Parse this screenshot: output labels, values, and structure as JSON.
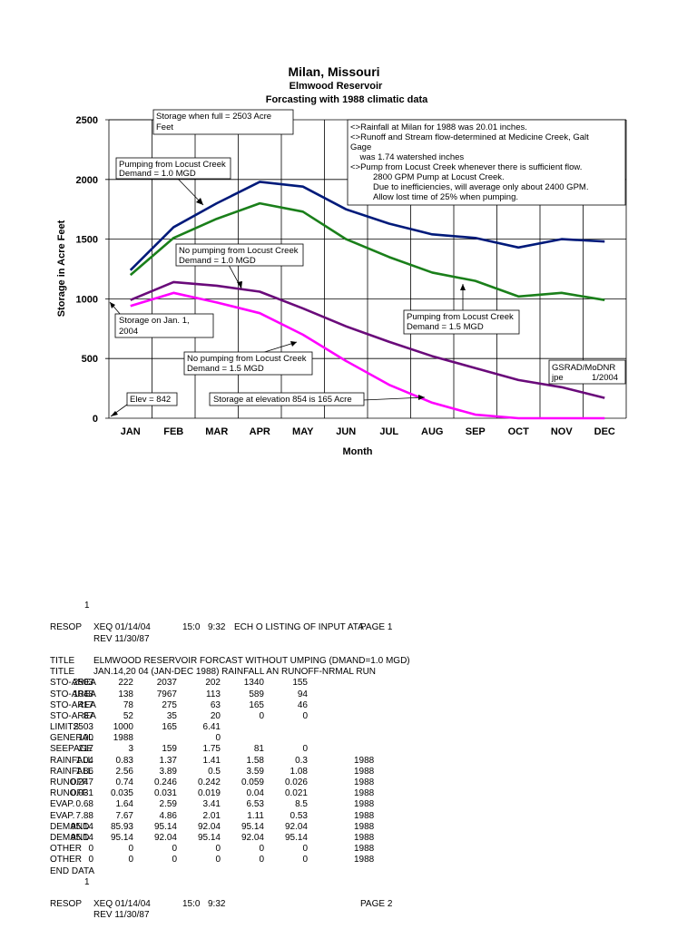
{
  "chart_data": {
    "type": "line",
    "title": "Milan, Missouri",
    "subtitle_1": "Elmwood Reservoir",
    "subtitle_2": "Forcasting with 1988 climatic data",
    "ylabel": "Storage in Acre Feet",
    "xlabel": "Month",
    "categories": [
      "JAN",
      "FEB",
      "MAR",
      "APR",
      "MAY",
      "JUN",
      "JUL",
      "AUG",
      "SEP",
      "OCT",
      "NOV",
      "DEC"
    ],
    "yticks": [
      "0",
      "500",
      "1000",
      "1500",
      "2000",
      "2500"
    ],
    "ylim": [
      0,
      2500
    ],
    "grid": "vertical",
    "series": [
      {
        "color": "#001a7a",
        "values": [
          1240,
          1600,
          1800,
          1980,
          1940,
          1750,
          1630,
          1540,
          1510,
          1430,
          1500,
          1480
        ]
      },
      {
        "color": "#1a7f1a",
        "values": [
          1200,
          1510,
          1670,
          1800,
          1730,
          1500,
          1350,
          1220,
          1150,
          1020,
          1050,
          990
        ]
      },
      {
        "color": "#6a0a7a",
        "values": [
          990,
          1140,
          1110,
          1060,
          920,
          770,
          640,
          520,
          420,
          320,
          260,
          170
        ]
      },
      {
        "color": "#ff00ff",
        "values": [
          940,
          1050,
          970,
          880,
          700,
          480,
          280,
          130,
          30,
          0,
          0,
          0
        ]
      }
    ],
    "annotations": {
      "storage_full": [
        "Storage when full = 2503 Acre",
        "Feet"
      ],
      "notes": [
        "<>Rainfall at Milan for 1988 was 20.01 inches.",
        "<>Runoff and Stream flow-determined at Medicine Creek, Galt",
        "Gage",
        "    was 1.74 watershed inches",
        "<>Pump from Locust Creek whenever there is sufficient flow.",
        "        2800 GPM Pump at Locust Creek.",
        "        Due to inefficiencies, will average only about 2400 GPM.",
        "        Allow lost time of 25% when pumping."
      ],
      "pump_1mgd": [
        "Pumping from Locust Creek",
        "Demand = 1.0 MGD"
      ],
      "nopump_1mgd": [
        "No pumping from Locust Creek",
        "Demand = 1.0 MGD"
      ],
      "jan1": [
        "Storage on Jan. 1,",
        "2004"
      ],
      "pump_15mgd": [
        "Pumping from Locust Creek",
        "Demand = 1.5 MGD"
      ],
      "nopump_15mgd": [
        "No pumping from Locust Creek",
        "Demand = 1.5 MGD"
      ],
      "gsrad": [
        "GSRAD/MoDNR",
        "jpe",
        "1/2004"
      ],
      "elev": "Elev = 842",
      "elev854": "Storage at elevation 854 is 165 Acre"
    }
  },
  "listing": {
    "page_marker_1": "1",
    "header_1": [
      "RESOP",
      "XEQ  01/14/04",
      "15:0",
      "9:32",
      "ECH O LISTING OF INPUT ATA",
      "PAGE  1"
    ],
    "rev_1": "REV  11/30/87",
    "title_rows": [
      [
        "TITLE",
        "ELMWOOD RESERVOIR FORCAST WITHOUT UMPING (DMAND=1.0 MGD)"
      ],
      [
        "TITLE",
        "JAN.14,20 04 (JAN-DEC 1988) RAINFALL AN RUNOFF-NRMAL RUN"
      ]
    ],
    "rows": [
      {
        "label": "STO-AREA",
        "values": [
          "2503",
          "222",
          "2037",
          "202",
          "1340",
          "155",
          ""
        ]
      },
      {
        "label": "STO-AREA",
        "values": [
          "1048",
          "138",
          "7967",
          "113",
          "589",
          "94",
          ""
        ]
      },
      {
        "label": "STO-AREA",
        "values": [
          "417",
          "78",
          "275",
          "63",
          "165",
          "46",
          ""
        ]
      },
      {
        "label": "STO-AREA",
        "values": [
          "87",
          "52",
          "35",
          "20",
          "0",
          "0",
          ""
        ]
      },
      {
        "label": "LIMITS",
        "values": [
          "2503",
          "1000",
          "165",
          "6.41",
          "",
          "",
          ""
        ]
      },
      {
        "label": "GENERAL",
        "values": [
          "100",
          "1988",
          "",
          "0",
          "",
          "",
          ""
        ]
      },
      {
        "label": "SEEPAGE",
        "values": [
          "217",
          "3",
          "159",
          "1.75",
          "81",
          "0",
          ""
        ]
      },
      {
        "label": "RAINFALL",
        "values": [
          "1.04",
          "0.83",
          "1.37",
          "1.41",
          "1.58",
          "0.3",
          "1988"
        ]
      },
      {
        "label": "RAINFALL",
        "values": [
          "1.86",
          "2.56",
          "3.89",
          "0.5",
          "3.59",
          "1.08",
          "1988"
        ]
      },
      {
        "label": "RUNOFF",
        "values": [
          "0.247",
          "0.74",
          "0.246",
          "0.242",
          "0.059",
          "0.026",
          "1988"
        ]
      },
      {
        "label": "RUNOFF",
        "values": [
          "0.031",
          "0.035",
          "0.031",
          "0.019",
          "0.04",
          "0.021",
          "1988"
        ]
      },
      {
        "label": "EVAP.",
        "values": [
          "0.68",
          "1.64",
          "2.59",
          "3.41",
          "6.53",
          "8.5",
          "1988"
        ]
      },
      {
        "label": "EVAP.",
        "values": [
          "7.88",
          "7.67",
          "4.86",
          "2.01",
          "1.11",
          "0.53",
          "1988"
        ]
      },
      {
        "label": "DEMAND",
        "values": [
          "95.14",
          "85.93",
          "95.14",
          "92.04",
          "95.14",
          "92.04",
          "1988"
        ]
      },
      {
        "label": "DEMAND",
        "values": [
          "95.14",
          "95.14",
          "92.04",
          "95.14",
          "92.04",
          "95.14",
          "1988"
        ]
      },
      {
        "label": "OTHER",
        "values": [
          "0",
          "0",
          "0",
          "0",
          "0",
          "0",
          "1988"
        ]
      },
      {
        "label": "OTHER",
        "values": [
          "0",
          "0",
          "0",
          "0",
          "0",
          "0",
          "1988"
        ]
      }
    ],
    "end_data": "END DATA",
    "page_marker_2": "1",
    "header_2": [
      "RESOP",
      "XEQ  01/14/04",
      "15:0",
      "9:32",
      "",
      "PAGE  2"
    ],
    "rev_2": "REV  11/30/87"
  }
}
